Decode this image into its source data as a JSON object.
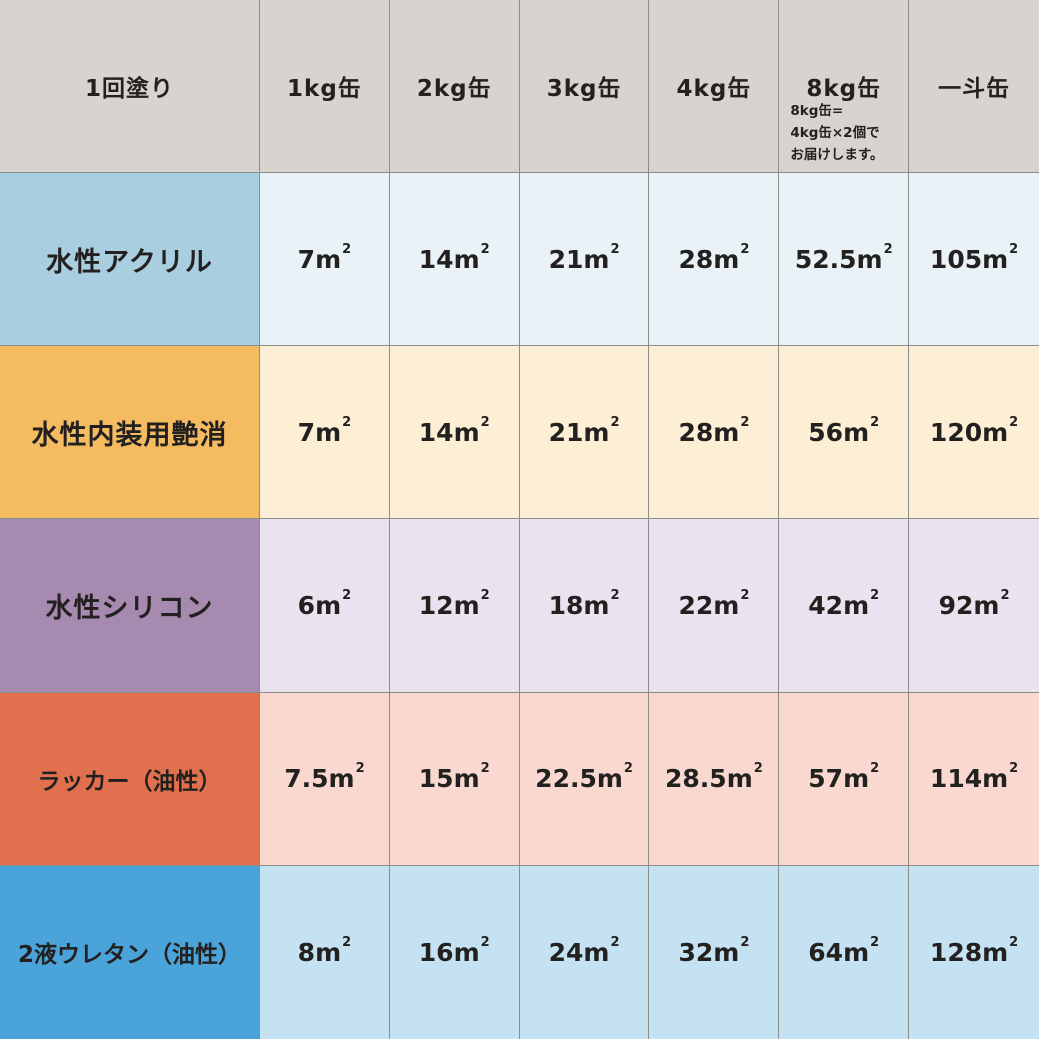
{
  "table": {
    "header": {
      "row_label": "1回塗り",
      "columns": [
        "1kg缶",
        "2kg缶",
        "3kg缶",
        "4kg缶",
        "8kg缶",
        "一斗缶"
      ],
      "note_lines": [
        "8kg缶=",
        "4kg缶×2個で",
        "お届けします。"
      ]
    },
    "unit": {
      "base": "m",
      "exponent": "2"
    },
    "rows": [
      {
        "label": "水性アクリル",
        "label_color": "#a9cedf",
        "cell_color": "#e9f2f6",
        "values": [
          "7",
          "14",
          "21",
          "28",
          "52.5",
          "105"
        ]
      },
      {
        "label": "水性内装用艶消",
        "label_color": "#f5bb61",
        "cell_color": "#fdeed6",
        "values": [
          "7",
          "14",
          "21",
          "28",
          "56",
          "120"
        ]
      },
      {
        "label": "水性シリコン",
        "label_color": "#a78aaf",
        "cell_color": "#eae2ee",
        "values": [
          "6",
          "12",
          "18",
          "22",
          "42",
          "92"
        ]
      },
      {
        "label": "ラッカー（油性）",
        "label_color": "#e1714e",
        "cell_color": "#f9d9cf",
        "values": [
          "7.5",
          "15",
          "22.5",
          "28.5",
          "57",
          "114"
        ]
      },
      {
        "label": "2液ウレタン（油性）",
        "label_color": "#4aa3d9",
        "cell_color": "#c4e2f2",
        "values": [
          "8",
          "16",
          "24",
          "32",
          "64",
          "128"
        ]
      }
    ],
    "colors": {
      "header_bg": "#d7d4cf",
      "grid_line": "#8c8c89",
      "text": "#232020"
    }
  },
  "chart_data": {
    "type": "table",
    "title": "1回塗り",
    "columns": [
      "1kg缶",
      "2kg缶",
      "3kg缶",
      "4kg缶",
      "8kg缶",
      "一斗缶"
    ],
    "unit": "m²",
    "series": [
      {
        "name": "水性アクリル",
        "values": [
          7,
          14,
          21,
          28,
          52.5,
          105
        ]
      },
      {
        "name": "水性内装用艶消",
        "values": [
          7,
          14,
          21,
          28,
          56,
          120
        ]
      },
      {
        "name": "水性シリコン",
        "values": [
          6,
          12,
          18,
          22,
          42,
          92
        ]
      },
      {
        "name": "ラッカー（油性）",
        "values": [
          7.5,
          15,
          22.5,
          28.5,
          57,
          114
        ]
      },
      {
        "name": "2液ウレタン（油性）",
        "values": [
          8,
          16,
          24,
          32,
          64,
          128
        ]
      }
    ],
    "note": "8kg缶=4kg缶×2個でお届けします。"
  }
}
